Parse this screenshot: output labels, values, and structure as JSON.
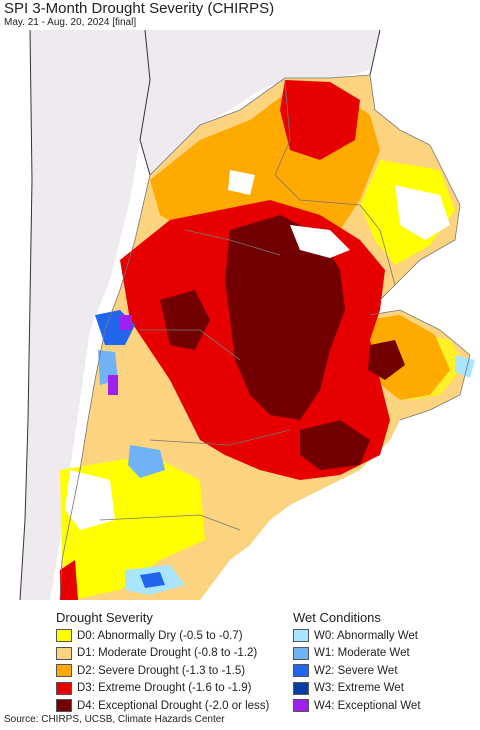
{
  "header": {
    "title": "SPI 3-Month Drought Severity (CHIRPS)",
    "subtitle": "May. 21 - Aug. 20, 2024 [final]"
  },
  "legend": {
    "drought_heading": "Drought Severity",
    "wet_heading": "Wet Conditions",
    "drought_items": [
      {
        "label": "D0: Abnormally Dry (-0.5 to -0.7)",
        "color": "#ffff00"
      },
      {
        "label": "D1: Moderate Drought (-0.8 to -1.2)",
        "color": "#fcd37f"
      },
      {
        "label": "D2: Severe Drought (-1.3 to -1.5)",
        "color": "#ffaa00"
      },
      {
        "label": "D3: Extreme Drought (-1.6 to -1.9)",
        "color": "#e60000"
      },
      {
        "label": "D4: Exceptional Drought (-2.0 or less)",
        "color": "#730000"
      }
    ],
    "wet_items": [
      {
        "label": "W0: Abnormally Wet",
        "color": "#aae5ff"
      },
      {
        "label": "W1: Moderate Wet",
        "color": "#6fb2f5"
      },
      {
        "label": "W2: Severe Wet",
        "color": "#2266ee"
      },
      {
        "label": "W3: Extreme Wet",
        "color": "#0a3ca8"
      },
      {
        "label": "W4: Exceptional Wet",
        "color": "#a020f0"
      }
    ]
  },
  "footer": {
    "source": "Source: CHIRPS, UCSB, Climate Hazards Center"
  }
}
